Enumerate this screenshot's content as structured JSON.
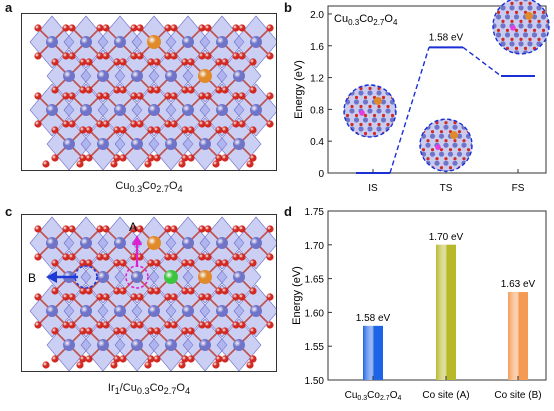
{
  "panels": {
    "a": {
      "letter": "a",
      "caption_html": "Cu<sub>0.3</sub>Co<sub>2.7</sub>O<sub>4</sub>"
    },
    "b": {
      "letter": "b"
    },
    "c": {
      "letter": "c",
      "caption_html": "Ir<sub>1</sub>/Cu<sub>0.3</sub>Co<sub>2.7</sub>O<sub>4</sub>",
      "arrow_a_label": "A",
      "arrow_b_label": "B"
    },
    "d": {
      "letter": "d"
    }
  },
  "colors": {
    "co_atom": "#6f74c9",
    "o_atom": "#d22a22",
    "cu_atom": "#e08a2a",
    "ir_atom": "#3cc43c",
    "polyhedra": "#8e94e6",
    "energy_path": "#1a2fd6",
    "bar_cu": "#1e64e6",
    "bar_a": "#b8b92a",
    "bar_b": "#f59a55",
    "arrow_a": "#e020d0",
    "arrow_b": "#1e3ad6"
  },
  "chart_data": [
    {
      "type": "line",
      "panel": "b",
      "title_html": "Cu<tspan font-size='8' dy='3'>0.3</tspan><tspan dy='-3'>Co</tspan><tspan font-size='8' dy='3'>2.7</tspan><tspan dy='-3'>O</tspan><tspan font-size='8' dy='3'>4</tspan>",
      "ylabel": "Energy (eV)",
      "categories": [
        "IS",
        "TS",
        "FS"
      ],
      "values": [
        0.0,
        1.58,
        1.22
      ],
      "annotations": [
        "",
        "1.58 eV",
        ""
      ],
      "ylim": [
        0,
        2.1
      ],
      "yticks": [
        0,
        0.4,
        0.8,
        1.2,
        1.6,
        2.0
      ],
      "ytick_labels": [
        "0",
        "0.4",
        "0.8",
        "1.2",
        "1.6",
        "2.0"
      ],
      "grid": false
    },
    {
      "type": "bar",
      "panel": "d",
      "ylabel": "Energy (eV)",
      "categories": [
        "Cu0.3Co2.7O4",
        "Co site (A)",
        "Co site (B)"
      ],
      "values": [
        1.58,
        1.7,
        1.63
      ],
      "labels": [
        "1.58 eV",
        "1.70 eV",
        "1.63 eV"
      ],
      "ylim": [
        1.5,
        1.75
      ],
      "yticks": [
        1.5,
        1.55,
        1.6,
        1.65,
        1.7,
        1.75
      ],
      "ytick_labels": [
        "1.50",
        "1.55",
        "1.60",
        "1.65",
        "1.70",
        "1.75"
      ],
      "grid": false
    }
  ]
}
